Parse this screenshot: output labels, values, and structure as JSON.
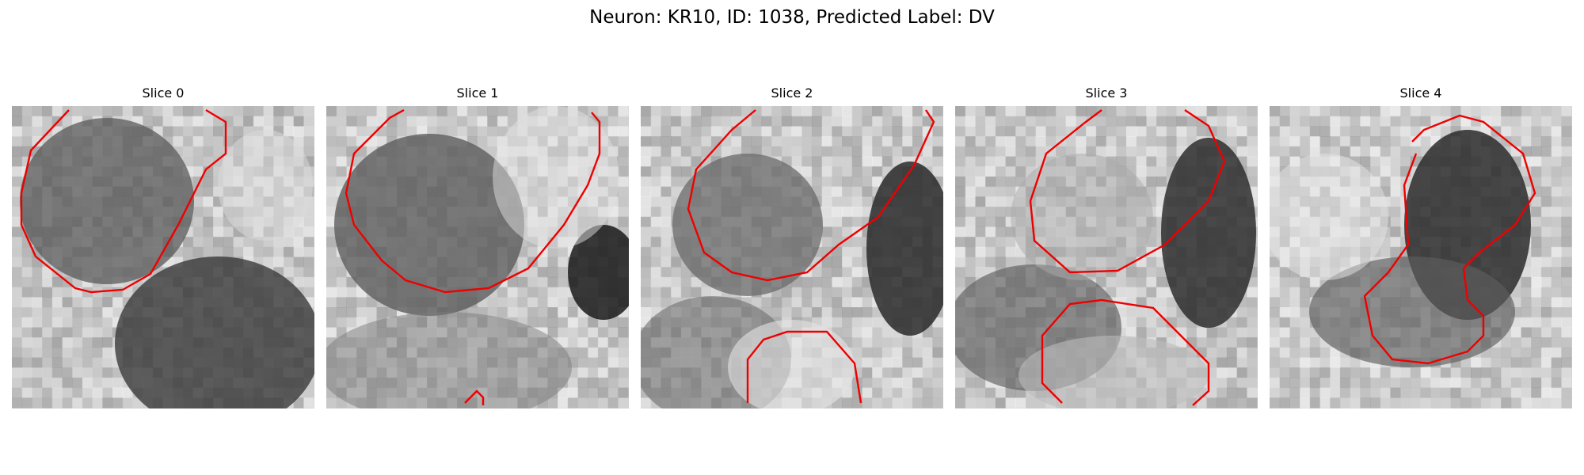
{
  "figure": {
    "title": "Neuron: KR10, ID: 1038, Predicted Label: DV"
  },
  "panels": [
    {
      "title": "Slice 0"
    },
    {
      "title": "Slice 1"
    },
    {
      "title": "Slice 2"
    },
    {
      "title": "Slice 3"
    },
    {
      "title": "Slice 4"
    }
  ],
  "colors": {
    "contour": "#ee0000",
    "background": "#ffffff"
  },
  "image_style": "grayscale microscopy tiles with red segmentation contours"
}
